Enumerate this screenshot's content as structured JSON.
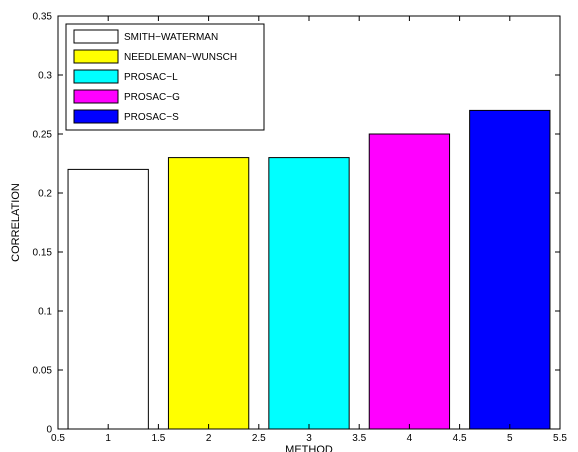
{
  "chart_data": {
    "type": "bar",
    "title": "",
    "xlabel": "METHOD",
    "ylabel": "CORRELATION",
    "categories": [
      1,
      2,
      3,
      4,
      5
    ],
    "values": [
      0.22,
      0.23,
      0.23,
      0.25,
      0.27
    ],
    "bar_colors": [
      "#ffffff",
      "#ffff00",
      "#00ffff",
      "#ff00ff",
      "#0000ff"
    ],
    "series_names": [
      "SMITH−WATERMAN",
      "NEEDLEMAN−WUNSCH",
      "PROSAC−L",
      "PROSAC−G",
      "PROSAC−S"
    ],
    "xlim": [
      0.5,
      5.5
    ],
    "ylim": [
      0,
      0.35
    ],
    "xticks": [
      "0.5",
      "1",
      "1.5",
      "2",
      "2.5",
      "3",
      "3.5",
      "4",
      "4.5",
      "5",
      "5.5"
    ],
    "yticks": [
      "0",
      "0.05",
      "0.1",
      "0.15",
      "0.2",
      "0.25",
      "0.3",
      "0.35"
    ],
    "grid": false,
    "legend_position": "top-left"
  }
}
